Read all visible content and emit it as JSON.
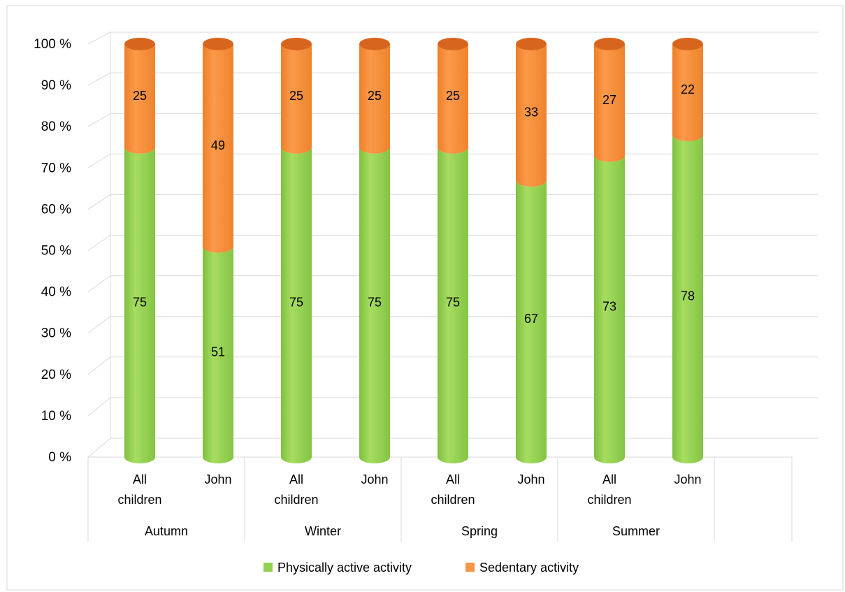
{
  "chart_data": {
    "type": "bar",
    "stacked": true,
    "percent_stacked": true,
    "style": "3d-cylinder",
    "groups": [
      {
        "label": "Autumn",
        "categories": [
          "All\nchildren",
          "John"
        ]
      },
      {
        "label": "Winter",
        "categories": [
          "All\nchildren",
          "John"
        ]
      },
      {
        "label": "Spring",
        "categories": [
          "All\nchildren",
          "John"
        ]
      },
      {
        "label": "Summer",
        "categories": [
          "All\nchildren",
          "John"
        ]
      }
    ],
    "series": [
      {
        "name": "Physically active activity",
        "color": "#92D050",
        "values": [
          75,
          51,
          75,
          75,
          75,
          67,
          73,
          78
        ]
      },
      {
        "name": "Sedentary activity",
        "color": "#F79646",
        "values": [
          25,
          49,
          25,
          25,
          25,
          33,
          27,
          22
        ]
      }
    ],
    "yaxis": {
      "ticks": [
        "0 %",
        "10 %",
        "20 %",
        "30 %",
        "40 %",
        "50 %",
        "60 %",
        "70 %",
        "80 %",
        "90 %",
        "100 %"
      ],
      "min": 0,
      "max": 100
    },
    "grid": true,
    "legend": "bottom",
    "title": "",
    "xlabel": "",
    "ylabel": ""
  }
}
